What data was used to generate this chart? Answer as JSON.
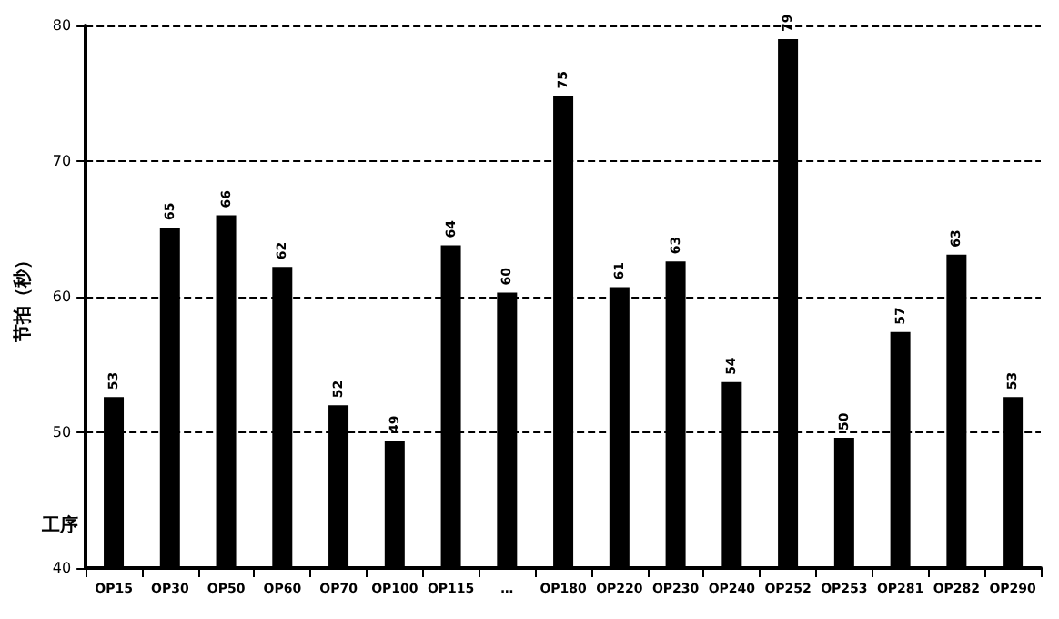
{
  "chart_data": {
    "type": "bar",
    "ylabel": "节拍（秒）",
    "xlabel": "工序",
    "categories": [
      "OP15",
      "OP30",
      "OP50",
      "OP60",
      "OP70",
      "OP100",
      "OP115",
      "…",
      "OP180",
      "OP220",
      "OP230",
      "OP240",
      "OP252",
      "OP253",
      "OP281",
      "OP282",
      "OP290"
    ],
    "values": [
      52.6,
      65.1,
      66.0,
      62.2,
      52.0,
      49.4,
      63.8,
      60.3,
      74.8,
      60.7,
      62.6,
      53.7,
      79.0,
      49.6,
      57.4,
      63.1,
      52.6
    ],
    "value_labels": [
      "53",
      "65",
      "66",
      "62",
      "52",
      "49",
      "64",
      "60",
      "75",
      "61",
      "63",
      "54",
      "79",
      "50",
      "57",
      "63",
      "53"
    ],
    "color": "#000000",
    "ylim": [
      40,
      80
    ],
    "yticks": [
      40,
      50,
      60,
      70,
      80
    ],
    "grid": "y"
  }
}
